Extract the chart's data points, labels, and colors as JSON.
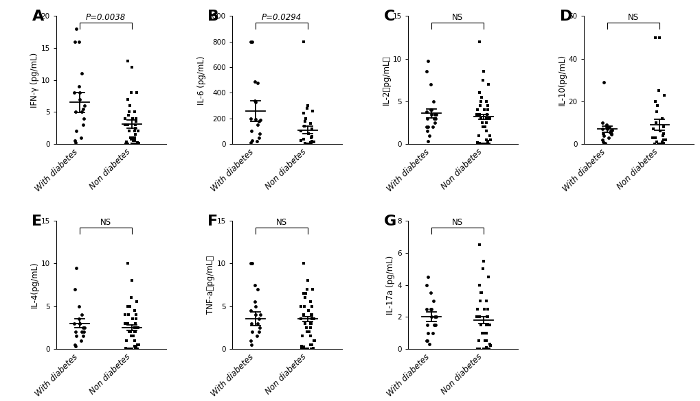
{
  "panels": [
    {
      "label": "A",
      "ylabel": "IFN-γ (pg/mL)",
      "ylim": [
        0,
        20
      ],
      "yticks": [
        0,
        5,
        10,
        15,
        20
      ],
      "sig_text": "P=0.0038",
      "group1": {
        "name": "With diabetes",
        "marker": "o",
        "mean": 6.5,
        "sem": 1.6,
        "points": [
          18,
          16,
          16,
          11,
          9,
          8,
          8,
          7,
          6,
          5.5,
          5,
          5,
          4,
          3,
          2,
          1,
          0.5,
          0.2
        ]
      },
      "group2": {
        "name": "Non diabetes",
        "marker": "s",
        "mean": 3.1,
        "sem": 0.65,
        "points": [
          13,
          12,
          8,
          8,
          7,
          6,
          5,
          5,
          4.5,
          4,
          4,
          4,
          3.5,
          3,
          3,
          3,
          2.5,
          2,
          2,
          2,
          1.5,
          1,
          1,
          1,
          0.8,
          0.5,
          0.5,
          0.3,
          0.2,
          0.1,
          0,
          0,
          0,
          0,
          0,
          0,
          0,
          0,
          0,
          0
        ]
      }
    },
    {
      "label": "B",
      "ylabel": "IL-6 (pg/mL)",
      "ylim": [
        0,
        1000
      ],
      "yticks": [
        0,
        200,
        400,
        600,
        800,
        1000
      ],
      "sig_text": "P=0.0294",
      "group1": {
        "name": "With diabetes",
        "marker": "o",
        "mean": 260,
        "sem": 80,
        "points": [
          800,
          800,
          490,
          480,
          340,
          330,
          200,
          195,
          190,
          180,
          150,
          100,
          80,
          50,
          30,
          20,
          10
        ]
      },
      "group2": {
        "name": "Non diabetes",
        "marker": "s",
        "mean": 110,
        "sem": 28,
        "points": [
          800,
          300,
          280,
          260,
          240,
          200,
          180,
          160,
          140,
          120,
          100,
          80,
          60,
          50,
          40,
          30,
          20,
          15,
          10,
          5,
          3,
          2,
          1,
          0,
          0,
          0
        ]
      }
    },
    {
      "label": "C",
      "ylabel": "IL-2（pg/mL）",
      "ylim": [
        0,
        15
      ],
      "yticks": [
        0,
        5,
        10,
        15
      ],
      "sig_text": "NS",
      "group1": {
        "name": "With diabetes",
        "marker": "o",
        "mean": 3.6,
        "sem": 0.5,
        "points": [
          9.7,
          8.5,
          7,
          5,
          4,
          4,
          3.8,
          3.5,
          3.5,
          3.5,
          3,
          3,
          3,
          2.5,
          2,
          2,
          2,
          1.5,
          1,
          0.3
        ]
      },
      "group2": {
        "name": "Non diabetes",
        "marker": "s",
        "mean": 3.2,
        "sem": 0.3,
        "points": [
          12,
          8.5,
          7.5,
          7,
          6,
          5.5,
          5,
          5,
          4.5,
          4.5,
          4,
          4,
          4,
          3.5,
          3.5,
          3.5,
          3,
          3,
          3,
          3,
          3,
          2.5,
          2.5,
          2,
          2,
          2,
          1.5,
          1,
          1,
          0.5,
          0.5,
          0.3,
          0.2,
          0.1,
          0,
          0,
          0,
          0,
          0,
          0,
          0,
          0,
          0,
          0,
          0,
          0
        ]
      }
    },
    {
      "label": "D",
      "ylabel": "IL-10(pg/mL)",
      "ylim": [
        0,
        60
      ],
      "yticks": [
        0,
        20,
        40,
        60
      ],
      "sig_text": "NS",
      "group1": {
        "name": "With diabetes",
        "marker": "o",
        "mean": 7,
        "sem": 1.5,
        "points": [
          29,
          10,
          9,
          8,
          8,
          7.5,
          7,
          7,
          6.5,
          6,
          5.5,
          5,
          5,
          4.5,
          4,
          3,
          2,
          1,
          0.5,
          0.2
        ]
      },
      "group2": {
        "name": "Non diabetes",
        "marker": "s",
        "mean": 9,
        "sem": 2.5,
        "points": [
          50,
          50,
          25,
          23,
          20,
          18,
          15,
          12,
          10,
          8,
          7,
          6,
          5,
          4,
          3,
          3,
          2,
          2,
          1,
          1,
          0.5,
          0.3,
          0.2,
          0.1,
          0,
          0,
          0,
          0
        ]
      }
    }
  ],
  "panels_row2": [
    {
      "label": "E",
      "ylabel": "IL-4(pg/mL)",
      "ylim": [
        0,
        15
      ],
      "yticks": [
        0,
        5,
        10,
        15
      ],
      "sig_text": "NS",
      "group1": {
        "name": "With diabetes",
        "marker": "o",
        "mean": 3.0,
        "sem": 0.5,
        "points": [
          9.5,
          7,
          5,
          4,
          3.5,
          3,
          3,
          3,
          2.5,
          2.5,
          2,
          2,
          2,
          1.5,
          1.5,
          1,
          0.5,
          0.3
        ]
      },
      "group2": {
        "name": "Non diabetes",
        "marker": "s",
        "mean": 2.5,
        "sem": 0.3,
        "points": [
          10,
          8,
          6,
          5.5,
          5,
          5,
          5,
          4.5,
          4,
          4,
          4,
          3.5,
          3.5,
          3,
          3,
          3,
          2.5,
          2.5,
          2.5,
          2,
          2,
          2,
          2,
          1.5,
          1.5,
          1.5,
          1,
          1,
          0.5,
          0.5,
          0.3,
          0.2,
          0.1,
          0,
          0,
          0,
          0,
          0,
          0,
          0,
          0,
          0,
          0
        ]
      }
    },
    {
      "label": "F",
      "ylabel": "TNF-a（pg/mL）",
      "ylim": [
        0,
        15
      ],
      "yticks": [
        0,
        5,
        10,
        15
      ],
      "sig_text": "NS",
      "group1": {
        "name": "With diabetes",
        "marker": "o",
        "mean": 3.5,
        "sem": 0.8,
        "points": [
          10,
          10,
          7.5,
          7,
          5.5,
          5,
          4.5,
          4,
          4,
          3.5,
          3,
          3,
          2.5,
          2,
          2,
          1.5,
          1,
          0.5
        ]
      },
      "group2": {
        "name": "Non diabetes",
        "marker": "s",
        "mean": 3.5,
        "sem": 0.3,
        "points": [
          10,
          8,
          7,
          7,
          6.5,
          6.5,
          6,
          5.5,
          5,
          5,
          5,
          4.5,
          4,
          4,
          4,
          3.5,
          3.5,
          3.5,
          3,
          3,
          3,
          2.5,
          2.5,
          2,
          2,
          2,
          1.5,
          1.5,
          1,
          1,
          0.5,
          0.5,
          0.3,
          0.2,
          0.1,
          0,
          0,
          0,
          0,
          0,
          0,
          0,
          0,
          0
        ]
      }
    },
    {
      "label": "G",
      "ylabel": "IL-17a (pg/mL)",
      "ylim": [
        0,
        8
      ],
      "yticks": [
        0,
        2,
        4,
        6,
        8
      ],
      "sig_text": "NS",
      "group1": {
        "name": "With diabetes",
        "marker": "o",
        "mean": 2.0,
        "sem": 0.3,
        "points": [
          4.5,
          4,
          3.5,
          3,
          2.5,
          2.5,
          2.5,
          2,
          2,
          2,
          1.5,
          1.5,
          1.5,
          1.5,
          1,
          1,
          0.5,
          0.5,
          0.3
        ]
      },
      "group2": {
        "name": "Non diabetes",
        "marker": "s",
        "mean": 1.8,
        "sem": 0.2,
        "points": [
          6.5,
          5.5,
          5,
          4.5,
          4,
          3.5,
          3.5,
          3,
          3,
          2.5,
          2.5,
          2.5,
          2,
          2,
          2,
          2,
          2,
          1.5,
          1.5,
          1.5,
          1.5,
          1,
          1,
          1,
          1,
          0.5,
          0.5,
          0.5,
          0.3,
          0.2,
          0.1,
          0,
          0,
          0,
          0,
          0,
          0,
          0,
          0,
          0
        ]
      }
    }
  ],
  "dot_color": "#000000",
  "bg_color": "#ffffff",
  "label_fontsize": 16,
  "tick_fontsize": 7.5,
  "ylabel_fontsize": 8.5,
  "sig_fontsize": 8.5,
  "xticklabel_fontsize": 8.5,
  "dot_size": 12,
  "dot_alpha": 1.0
}
